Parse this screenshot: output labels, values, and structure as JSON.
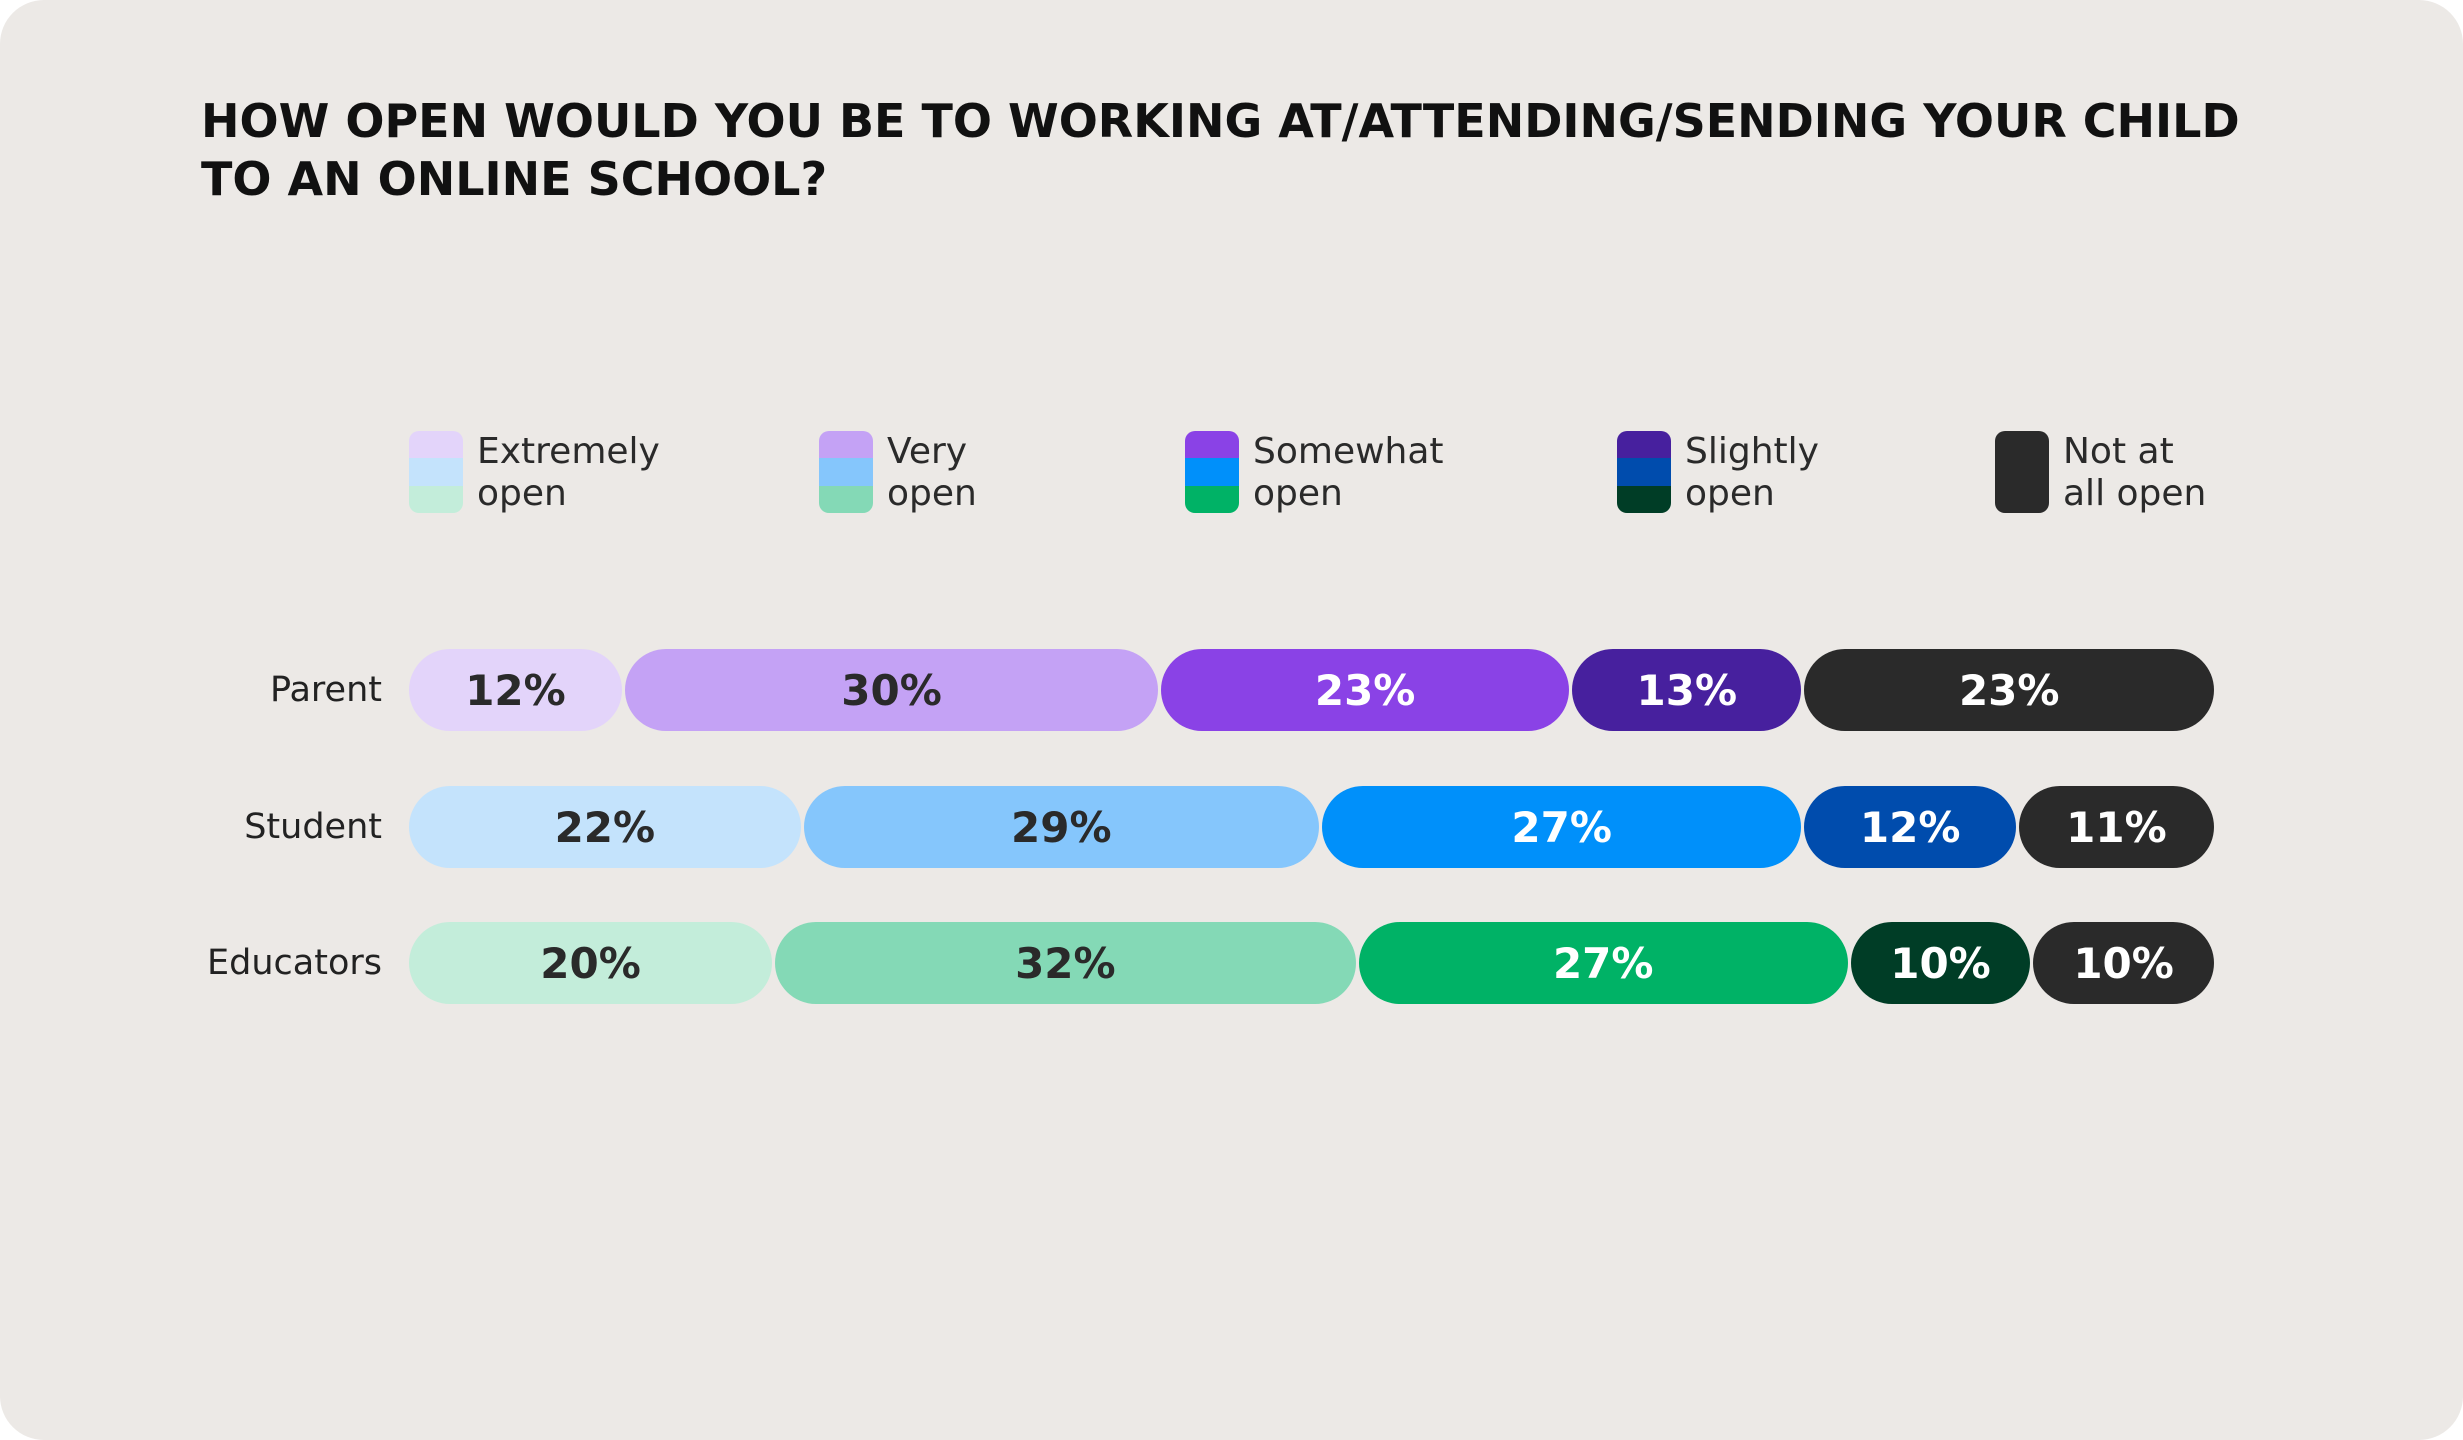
{
  "chart_data": {
    "type": "bar",
    "orientation": "horizontal-stacked-100",
    "title": "HOW OPEN WOULD YOU BE TO WORKING AT/ATTENDING/SENDING YOUR CHILD TO AN ONLINE SCHOOL?",
    "categories": [
      "Parent",
      "Student",
      "Educators"
    ],
    "series": [
      {
        "name": "Extremely open",
        "legend_lines": [
          "Extremely",
          "open"
        ],
        "values": [
          12,
          22,
          20
        ],
        "labels": [
          "12%",
          "22%",
          "20%"
        ]
      },
      {
        "name": "Very open",
        "legend_lines": [
          "Very",
          "open"
        ],
        "values": [
          30,
          29,
          32
        ],
        "labels": [
          "30%",
          "29%",
          "32%"
        ]
      },
      {
        "name": "Somewhat open",
        "legend_lines": [
          "Somewhat",
          "open"
        ],
        "values": [
          23,
          27,
          27
        ],
        "labels": [
          "23%",
          "27%",
          "27%"
        ]
      },
      {
        "name": "Slightly open",
        "legend_lines": [
          "Slightly",
          "open"
        ],
        "values": [
          13,
          12,
          10
        ],
        "labels": [
          "13%",
          "12%",
          "10%"
        ]
      },
      {
        "name": "Not at all open",
        "legend_lines": [
          "Not at",
          "all open"
        ],
        "values": [
          23,
          11,
          10
        ],
        "labels": [
          "23%",
          "11%",
          "10%"
        ]
      }
    ],
    "colors": {
      "Parent": [
        "#E3D4FA",
        "#C4A2F5",
        "#8A42E6",
        "#47209E",
        "#2A2A2A"
      ],
      "Student": [
        "#C4E3FC",
        "#85C6FC",
        "#0090FA",
        "#004CAD",
        "#2A2A2A"
      ],
      "Educators": [
        "#C3EDDA",
        "#84D9B6",
        "#00B266",
        "#003D26",
        "#2A2A2A"
      ]
    },
    "label_colors": {
      "Parent": [
        "#2A2A2A",
        "#2A2A2A",
        "#FFFFFF",
        "#FFFFFF",
        "#FFFFFF"
      ],
      "Student": [
        "#2A2A2A",
        "#2A2A2A",
        "#FFFFFF",
        "#FFFFFF",
        "#FFFFFF"
      ],
      "Educators": [
        "#2A2A2A",
        "#2A2A2A",
        "#FFFFFF",
        "#FFFFFF",
        "#FFFFFF"
      ]
    },
    "xlim": [
      0,
      100
    ],
    "grid": false,
    "legend_position": "top"
  }
}
